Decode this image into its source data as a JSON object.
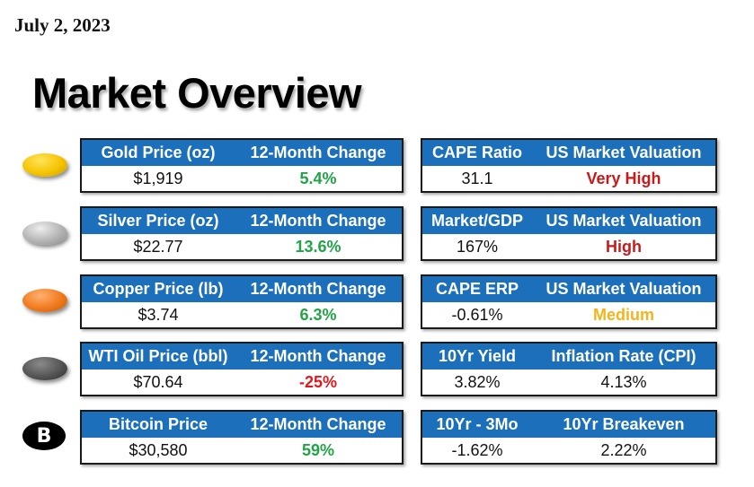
{
  "date": "July 2, 2023",
  "title": "Market Overview",
  "left_panels": [
    {
      "label": "Gold Price (oz)",
      "value": "$1,919",
      "change_label": "12-Month Change",
      "change": "5.4%"
    },
    {
      "label": "Silver Price (oz)",
      "value": "$22.77",
      "change_label": "12-Month Change",
      "change": "13.6%"
    },
    {
      "label": "Copper Price (lb)",
      "value": "$3.74",
      "change_label": "12-Month Change",
      "change": "6.3%"
    },
    {
      "label": "WTI Oil Price (bbl)",
      "value": "$70.64",
      "change_label": "12-Month Change",
      "change": "-25%"
    },
    {
      "label": "Bitcoin Price",
      "value": "$30,580",
      "change_label": "12-Month Change",
      "change": "59%"
    }
  ],
  "right_panels": [
    {
      "label1": "CAPE Ratio",
      "value1": "31.1",
      "label2": "US Market Valuation",
      "value2": "Very High"
    },
    {
      "label1": "Market/GDP",
      "value1": "167%",
      "label2": "US Market Valuation",
      "value2": "High"
    },
    {
      "label1": "CAPE ERP",
      "value1": "-0.61%",
      "label2": "US Market Valuation",
      "value2": "Medium"
    },
    {
      "label1": "10Yr Yield",
      "value1": "3.82%",
      "label2": "Inflation Rate (CPI)",
      "value2": "4.13%"
    },
    {
      "label1": "10Yr - 3Mo",
      "value1": "-1.62%",
      "label2": "10Yr Breakeven",
      "value2": "2.22%"
    }
  ],
  "icons": [
    "gold-coin-icon",
    "silver-coin-icon",
    "copper-coin-icon",
    "oil-coin-icon",
    "bitcoin-icon"
  ],
  "bitcoin_symbol": "B",
  "colors": {
    "header_blue": "#1c6fba",
    "positive_green": "#21a447",
    "negative_red": "#e2161c",
    "very_high_red": "#c81a1a",
    "medium_amber": "#f4b41a",
    "gold": "#f5c400",
    "silver": "#b4b4b4",
    "copper": "#f07a1e",
    "oil": "#555555"
  }
}
